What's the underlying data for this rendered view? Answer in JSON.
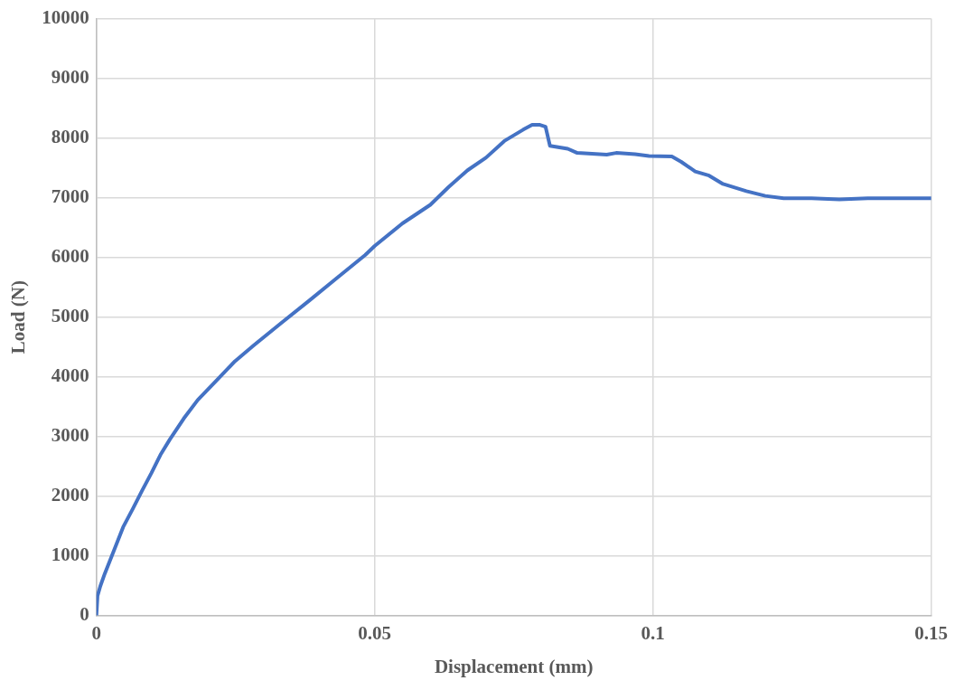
{
  "chart_data": {
    "type": "line",
    "xlabel": "Displacement (mm)",
    "ylabel": "Load (N)",
    "series": [
      {
        "color": "#4472c4",
        "x": [
          0,
          0.0002,
          0.0007,
          0.0015,
          0.0032,
          0.0048,
          0.0065,
          0.0082,
          0.0099,
          0.0115,
          0.0132,
          0.0157,
          0.0182,
          0.0216,
          0.0249,
          0.0282,
          0.0332,
          0.0383,
          0.0433,
          0.0483,
          0.05,
          0.055,
          0.06,
          0.0633,
          0.0667,
          0.07,
          0.0733,
          0.0767,
          0.0783,
          0.0797,
          0.0807,
          0.0815,
          0.0847,
          0.0864,
          0.0917,
          0.0934,
          0.0968,
          0.0993,
          0.1034,
          0.1051,
          0.1076,
          0.1101,
          0.1126,
          0.1168,
          0.1202,
          0.1235,
          0.1285,
          0.1335,
          0.1386,
          0.1452,
          0.15
        ],
        "values": [
          0,
          330,
          490,
          700,
          1100,
          1480,
          1780,
          2090,
          2390,
          2690,
          2950,
          3300,
          3610,
          3940,
          4260,
          4520,
          4900,
          5280,
          5660,
          6040,
          6190,
          6570,
          6880,
          7180,
          7460,
          7670,
          7950,
          8140,
          8220,
          8220,
          8190,
          7870,
          7820,
          7750,
          7720,
          7750,
          7730,
          7700,
          7690,
          7600,
          7440,
          7370,
          7230,
          7110,
          7030,
          6990,
          6990,
          6970,
          6990,
          6990,
          6990
        ]
      }
    ],
    "xlim": [
      0,
      0.15
    ],
    "xticks": [
      0,
      0.05,
      0.1,
      0.15
    ],
    "ylim": [
      0,
      10000
    ],
    "yticks": [
      0,
      1000,
      2000,
      3000,
      4000,
      5000,
      6000,
      7000,
      8000,
      9000,
      10000
    ],
    "grid": true,
    "legend": false,
    "marker": "none",
    "line_style": "solid"
  }
}
